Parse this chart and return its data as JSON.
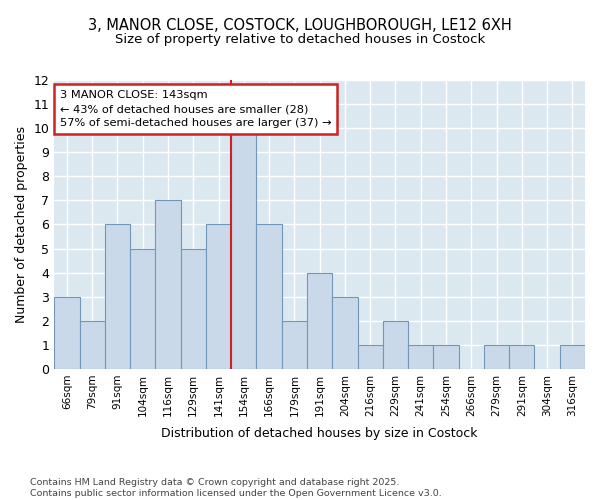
{
  "title_line1": "3, MANOR CLOSE, COSTOCK, LOUGHBOROUGH, LE12 6XH",
  "title_line2": "Size of property relative to detached houses in Costock",
  "xlabel": "Distribution of detached houses by size in Costock",
  "ylabel": "Number of detached properties",
  "categories": [
    "66sqm",
    "79sqm",
    "91sqm",
    "104sqm",
    "116sqm",
    "129sqm",
    "141sqm",
    "154sqm",
    "166sqm",
    "179sqm",
    "191sqm",
    "204sqm",
    "216sqm",
    "229sqm",
    "241sqm",
    "254sqm",
    "266sqm",
    "279sqm",
    "291sqm",
    "304sqm",
    "316sqm"
  ],
  "values": [
    3,
    2,
    6,
    5,
    7,
    5,
    6,
    10,
    6,
    2,
    4,
    3,
    1,
    2,
    1,
    1,
    0,
    1,
    1,
    0,
    1
  ],
  "bar_color": "#c9d9ea",
  "bar_edge_color": "#7096b8",
  "highlight_line_index": 6.5,
  "annotation_line1": "3 MANOR CLOSE: 143sqm",
  "annotation_line2": "← 43% of detached houses are smaller (28)",
  "annotation_line3": "57% of semi-detached houses are larger (37) →",
  "annotation_box_facecolor": "#ffffff",
  "annotation_box_edgecolor": "#cc2222",
  "vline_color": "#cc2222",
  "ylim": [
    0,
    12
  ],
  "yticks": [
    0,
    1,
    2,
    3,
    4,
    5,
    6,
    7,
    8,
    9,
    10,
    11,
    12
  ],
  "footer": "Contains HM Land Registry data © Crown copyright and database right 2025.\nContains public sector information licensed under the Open Government Licence v3.0.",
  "fig_bg_color": "#ffffff",
  "plot_bg_color": "#dce8f0"
}
